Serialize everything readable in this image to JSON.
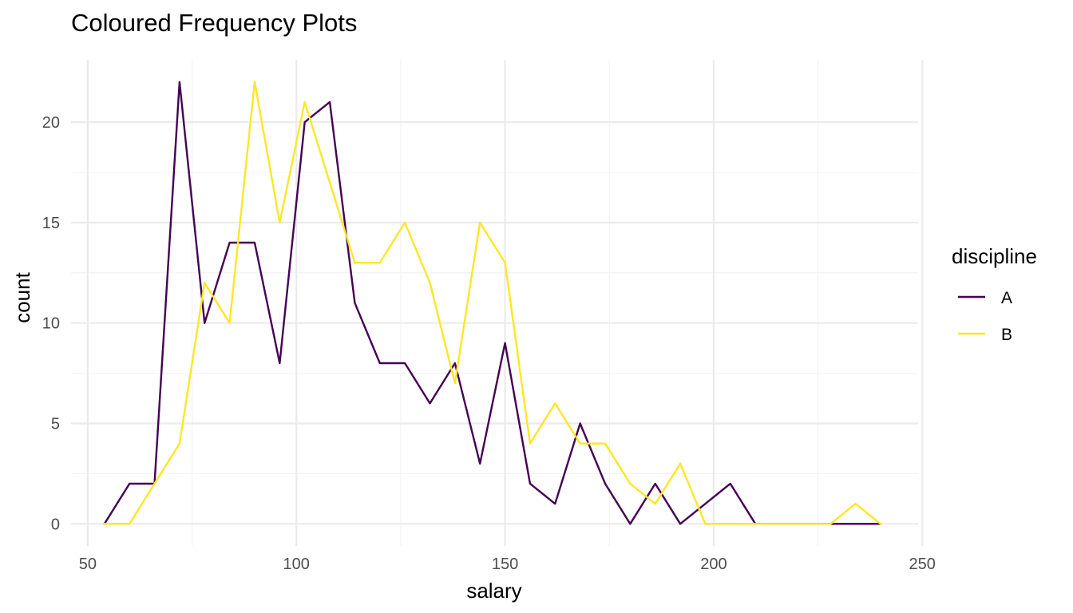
{
  "chart_data": {
    "type": "line",
    "title": "Coloured Frequency Plots",
    "xlabel": "salary",
    "ylabel": "count",
    "xlim": [
      46,
      249
    ],
    "ylim": [
      -1.1,
      23.1
    ],
    "x_ticks": [
      50,
      100,
      150,
      200,
      250
    ],
    "y_ticks": [
      0,
      5,
      10,
      15,
      20
    ],
    "grid": true,
    "legend": {
      "title": "discipline",
      "placement": "right",
      "entries": [
        "A",
        "B"
      ]
    },
    "series": [
      {
        "name": "A",
        "color": "#440154",
        "points": [
          [
            54,
            0
          ],
          [
            60,
            2
          ],
          [
            66,
            2
          ],
          [
            72,
            22
          ],
          [
            78,
            10
          ],
          [
            84,
            14
          ],
          [
            90,
            14
          ],
          [
            96,
            8
          ],
          [
            102,
            20
          ],
          [
            108,
            21
          ],
          [
            114,
            11
          ],
          [
            120,
            8
          ],
          [
            126,
            8
          ],
          [
            132,
            6
          ],
          [
            138,
            8
          ],
          [
            144,
            3
          ],
          [
            150,
            9
          ],
          [
            156,
            2
          ],
          [
            162,
            1
          ],
          [
            168,
            5
          ],
          [
            174,
            2
          ],
          [
            180,
            0
          ],
          [
            186,
            2
          ],
          [
            192,
            0
          ],
          [
            198,
            1
          ],
          [
            204,
            2
          ],
          [
            210,
            0
          ],
          [
            216,
            0
          ],
          [
            222,
            0
          ],
          [
            228,
            0
          ],
          [
            234,
            0
          ],
          [
            240,
            0
          ]
        ]
      },
      {
        "name": "B",
        "color": "#FDE725",
        "points": [
          [
            54,
            0
          ],
          [
            60,
            0
          ],
          [
            66,
            2
          ],
          [
            72,
            4
          ],
          [
            78,
            12
          ],
          [
            84,
            10
          ],
          [
            90,
            22
          ],
          [
            96,
            15
          ],
          [
            102,
            21
          ],
          [
            108,
            17
          ],
          [
            114,
            13
          ],
          [
            120,
            13
          ],
          [
            126,
            15
          ],
          [
            132,
            12
          ],
          [
            138,
            7
          ],
          [
            144,
            15
          ],
          [
            150,
            13
          ],
          [
            156,
            4
          ],
          [
            162,
            6
          ],
          [
            168,
            4
          ],
          [
            174,
            4
          ],
          [
            180,
            2
          ],
          [
            186,
            1
          ],
          [
            192,
            3
          ],
          [
            198,
            0
          ],
          [
            204,
            0
          ],
          [
            210,
            0
          ],
          [
            216,
            0
          ],
          [
            222,
            0
          ],
          [
            228,
            0
          ],
          [
            234,
            1
          ],
          [
            240,
            0
          ]
        ]
      }
    ]
  }
}
